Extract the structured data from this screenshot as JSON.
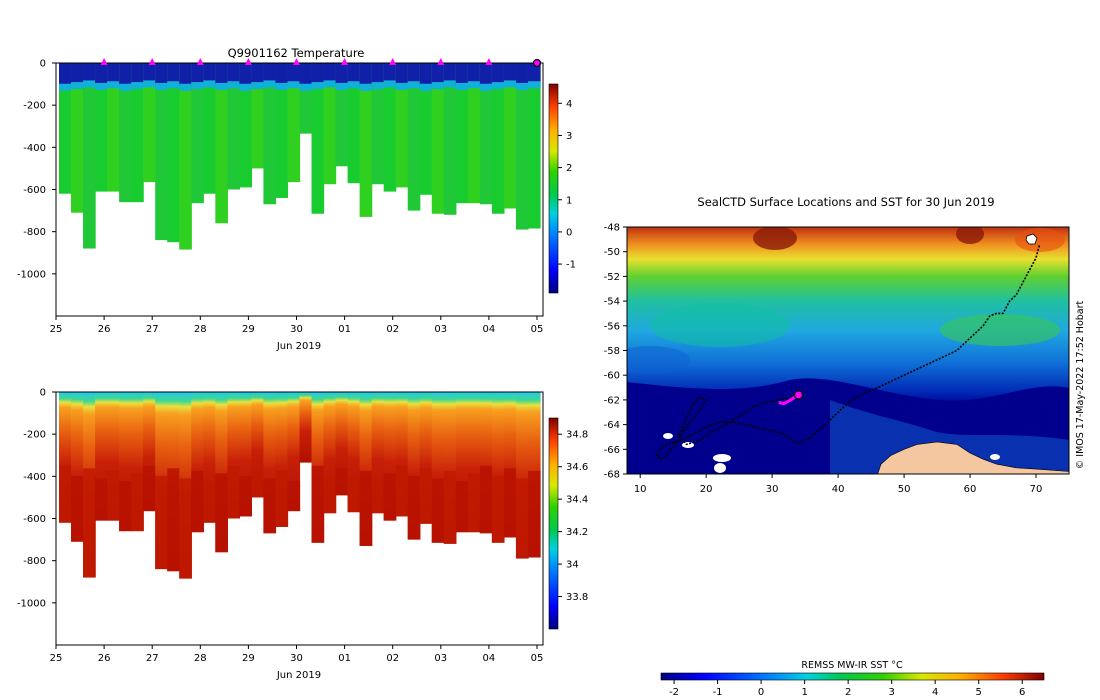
{
  "chart_data": [
    {
      "type": "heatmap",
      "title": "Q9901162  Temperature",
      "xlabel": "Jun 2019",
      "x_ticks": [
        "25",
        "26",
        "27",
        "28",
        "29",
        "30",
        "01",
        "02",
        "03",
        "04",
        "05"
      ],
      "ylim": [
        -1200,
        0
      ],
      "y_ticks": [
        0,
        -200,
        -400,
        -600,
        -800,
        -1000
      ],
      "colorbar": {
        "min": -1.9,
        "max": 4.6,
        "ticks": [
          -1,
          0,
          1,
          2,
          3,
          4
        ]
      },
      "surface_layer": {
        "depth": -100,
        "value": -1.2
      },
      "interior_value": 1.2,
      "profile_markers_days": [
        1,
        2,
        3,
        4,
        5,
        6,
        7,
        8,
        9
      ],
      "current_profile_day": 10,
      "profile_max_depths": [
        -620,
        -710,
        -880,
        -610,
        -610,
        -660,
        -660,
        -565,
        -840,
        -850,
        -885,
        -665,
        -620,
        -760,
        -600,
        -590,
        -500,
        -670,
        -640,
        -565,
        -335,
        -715,
        -575,
        -490,
        -570,
        -730,
        -575,
        -610,
        -590,
        -700,
        -625,
        -715,
        -720,
        -665,
        -665,
        -670,
        -715,
        -690,
        -790,
        -785
      ]
    },
    {
      "type": "heatmap",
      "title": "",
      "xlabel": "Jun 2019",
      "x_ticks": [
        "25",
        "26",
        "27",
        "28",
        "29",
        "30",
        "01",
        "02",
        "03",
        "04",
        "05"
      ],
      "ylim": [
        -1200,
        0
      ],
      "y_ticks": [
        0,
        -200,
        -400,
        -600,
        -800,
        -1000
      ],
      "colorbar": {
        "min": 33.6,
        "max": 34.9,
        "ticks": [
          33.8,
          34,
          34.2,
          34.4,
          34.6,
          34.8
        ]
      },
      "surface_value": 34.0,
      "deep_value": 34.7,
      "profile_max_depths": [
        -620,
        -710,
        -880,
        -610,
        -610,
        -660,
        -660,
        -565,
        -840,
        -850,
        -885,
        -665,
        -620,
        -760,
        -600,
        -590,
        -500,
        -670,
        -640,
        -565,
        -335,
        -715,
        -575,
        -490,
        -570,
        -730,
        -575,
        -610,
        -590,
        -700,
        -625,
        -715,
        -720,
        -665,
        -665,
        -670,
        -715,
        -690,
        -790,
        -785
      ]
    },
    {
      "type": "map",
      "title": "SealCTD Surface Locations and SST for 30 Jun 2019",
      "xlim": [
        8,
        75
      ],
      "ylim": [
        -68,
        -48
      ],
      "x_ticks": [
        10,
        20,
        30,
        40,
        50,
        60,
        70
      ],
      "y_ticks": [
        -48,
        -50,
        -52,
        -54,
        -56,
        -58,
        -60,
        -62,
        -64,
        -66,
        -68
      ],
      "credit": "© IMOS 17-May-2022 17:52 Hobart",
      "colorbar": {
        "label": "REMSS MW-IR SST °C",
        "min": -2.3,
        "max": 6.5,
        "ticks": [
          -2,
          -1,
          0,
          1,
          2,
          3,
          4,
          5,
          6
        ]
      },
      "track_lon": [
        70.5,
        70,
        69,
        68,
        67,
        66,
        65,
        64,
        63,
        62,
        61,
        60,
        59,
        58,
        56,
        54,
        52,
        50,
        48,
        46,
        44,
        42,
        40,
        38,
        36,
        34,
        33,
        32,
        30,
        28,
        26,
        24,
        22,
        20,
        18,
        16,
        14,
        13,
        12.5,
        13,
        14,
        15,
        16,
        17,
        18,
        19,
        20,
        19,
        18,
        17,
        16,
        17,
        19,
        21,
        23,
        25,
        27,
        29,
        31,
        32,
        33,
        34
      ],
      "track_lat": [
        -49.5,
        -50.5,
        -51.5,
        -52.5,
        -53.5,
        -54,
        -55,
        -55,
        -55.2,
        -56,
        -56.5,
        -57,
        -57.5,
        -58,
        -58.5,
        -59,
        -59.5,
        -60,
        -60.5,
        -61,
        -61.5,
        -62,
        -63,
        -64,
        -65,
        -65.5,
        -65.3,
        -64.8,
        -64.5,
        -64.3,
        -64,
        -63.8,
        -63.8,
        -64.2,
        -64.8,
        -65.3,
        -65.6,
        -66,
        -66.5,
        -66.8,
        -66.5,
        -65.8,
        -64.8,
        -63.5,
        -62.3,
        -61.8,
        -62,
        -62.8,
        -63.5,
        -64.2,
        -65,
        -65.6,
        -65.3,
        -64.5,
        -64,
        -63.3,
        -62.6,
        -62.2,
        -62,
        -61.9,
        -61.8,
        -61.6
      ],
      "recent_track_lon": [
        31,
        31.8,
        32.5,
        33.1,
        33.6,
        34
      ],
      "recent_track_lat": [
        -62.2,
        -62.3,
        -62.1,
        -61.9,
        -61.7,
        -61.6
      ],
      "current_position": {
        "lon": 34.0,
        "lat": -61.6
      }
    }
  ]
}
